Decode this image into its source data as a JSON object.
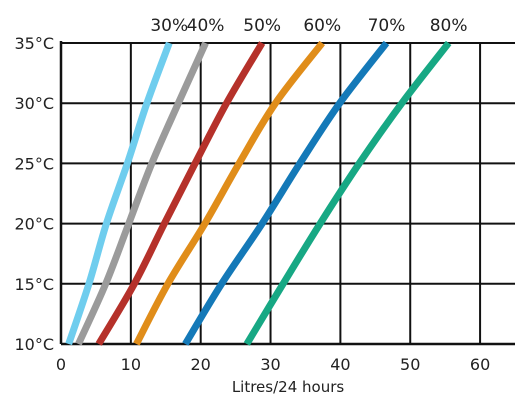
{
  "chart_data": {
    "type": "line",
    "title": "",
    "xlabel": "Litres/24 hours",
    "ylabel": "",
    "xlim": [
      0,
      65
    ],
    "ylim": [
      10,
      35
    ],
    "x_ticks": [
      0,
      10,
      20,
      30,
      40,
      50,
      60
    ],
    "y_ticks": [
      10,
      15,
      20,
      25,
      30,
      35
    ],
    "y_tick_labels": [
      "10°C",
      "15°C",
      "20°C",
      "25°C",
      "30°C",
      "35°C"
    ],
    "grid": true,
    "legend_position": "top",
    "series": [
      {
        "name": "30%",
        "color": "#6fcdee",
        "points": [
          [
            1.1,
            10
          ],
          [
            4.0,
            15
          ],
          [
            6.5,
            20
          ],
          [
            9.5,
            25
          ],
          [
            12.3,
            30
          ],
          [
            15.5,
            35
          ]
        ]
      },
      {
        "name": "40%",
        "color": "#9b9b9b",
        "points": [
          [
            2.5,
            10
          ],
          [
            6.4,
            15
          ],
          [
            9.7,
            20
          ],
          [
            13.0,
            25
          ],
          [
            16.8,
            30
          ],
          [
            20.7,
            35
          ]
        ]
      },
      {
        "name": "50%",
        "color": "#b5312a",
        "points": [
          [
            5.4,
            10
          ],
          [
            10.5,
            15
          ],
          [
            14.8,
            20
          ],
          [
            19.2,
            25
          ],
          [
            23.7,
            30
          ],
          [
            28.8,
            35
          ]
        ]
      },
      {
        "name": "60%",
        "color": "#e08d1a",
        "points": [
          [
            10.8,
            10
          ],
          [
            15.3,
            15
          ],
          [
            20.6,
            20
          ],
          [
            25.5,
            25
          ],
          [
            30.7,
            30
          ],
          [
            37.4,
            35
          ]
        ]
      },
      {
        "name": "70%",
        "color": "#1479b8",
        "points": [
          [
            17.8,
            10
          ],
          [
            23.0,
            15
          ],
          [
            28.8,
            20
          ],
          [
            34.2,
            25
          ],
          [
            39.9,
            30
          ],
          [
            46.6,
            35
          ]
        ]
      },
      {
        "name": "80%",
        "color": "#17a884",
        "points": [
          [
            26.6,
            10
          ],
          [
            31.8,
            15
          ],
          [
            37.1,
            20
          ],
          [
            42.7,
            25
          ],
          [
            48.8,
            30
          ],
          [
            55.5,
            35
          ]
        ]
      }
    ]
  }
}
